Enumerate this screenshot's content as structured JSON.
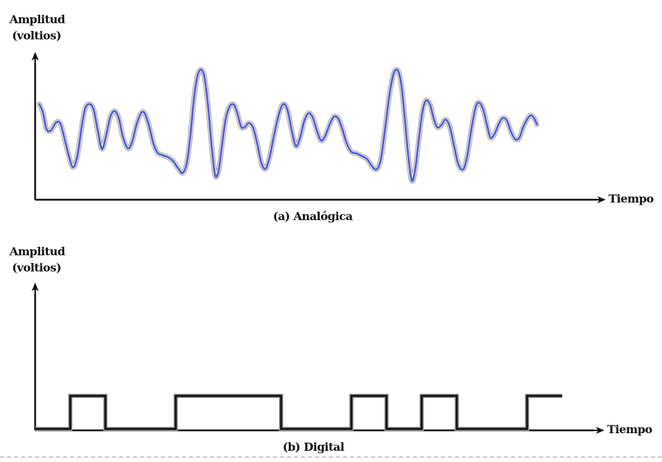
{
  "panel_a": {
    "ylabel_line1": "Amplitud",
    "ylabel_line2": "(voltios)",
    "xlabel": "Tiempo",
    "caption": "(a) Analógica",
    "signal_color": "#5560cc"
  },
  "panel_b": {
    "ylabel_line1": "Amplitud",
    "ylabel_line2": "(voltios)",
    "xlabel": "Tiempo",
    "caption": "(b) Digital",
    "signal_color": "#111111",
    "bits": [
      0,
      1,
      0,
      0,
      1,
      1,
      1,
      0,
      0,
      1,
      0,
      1,
      0,
      0,
      1
    ]
  }
}
